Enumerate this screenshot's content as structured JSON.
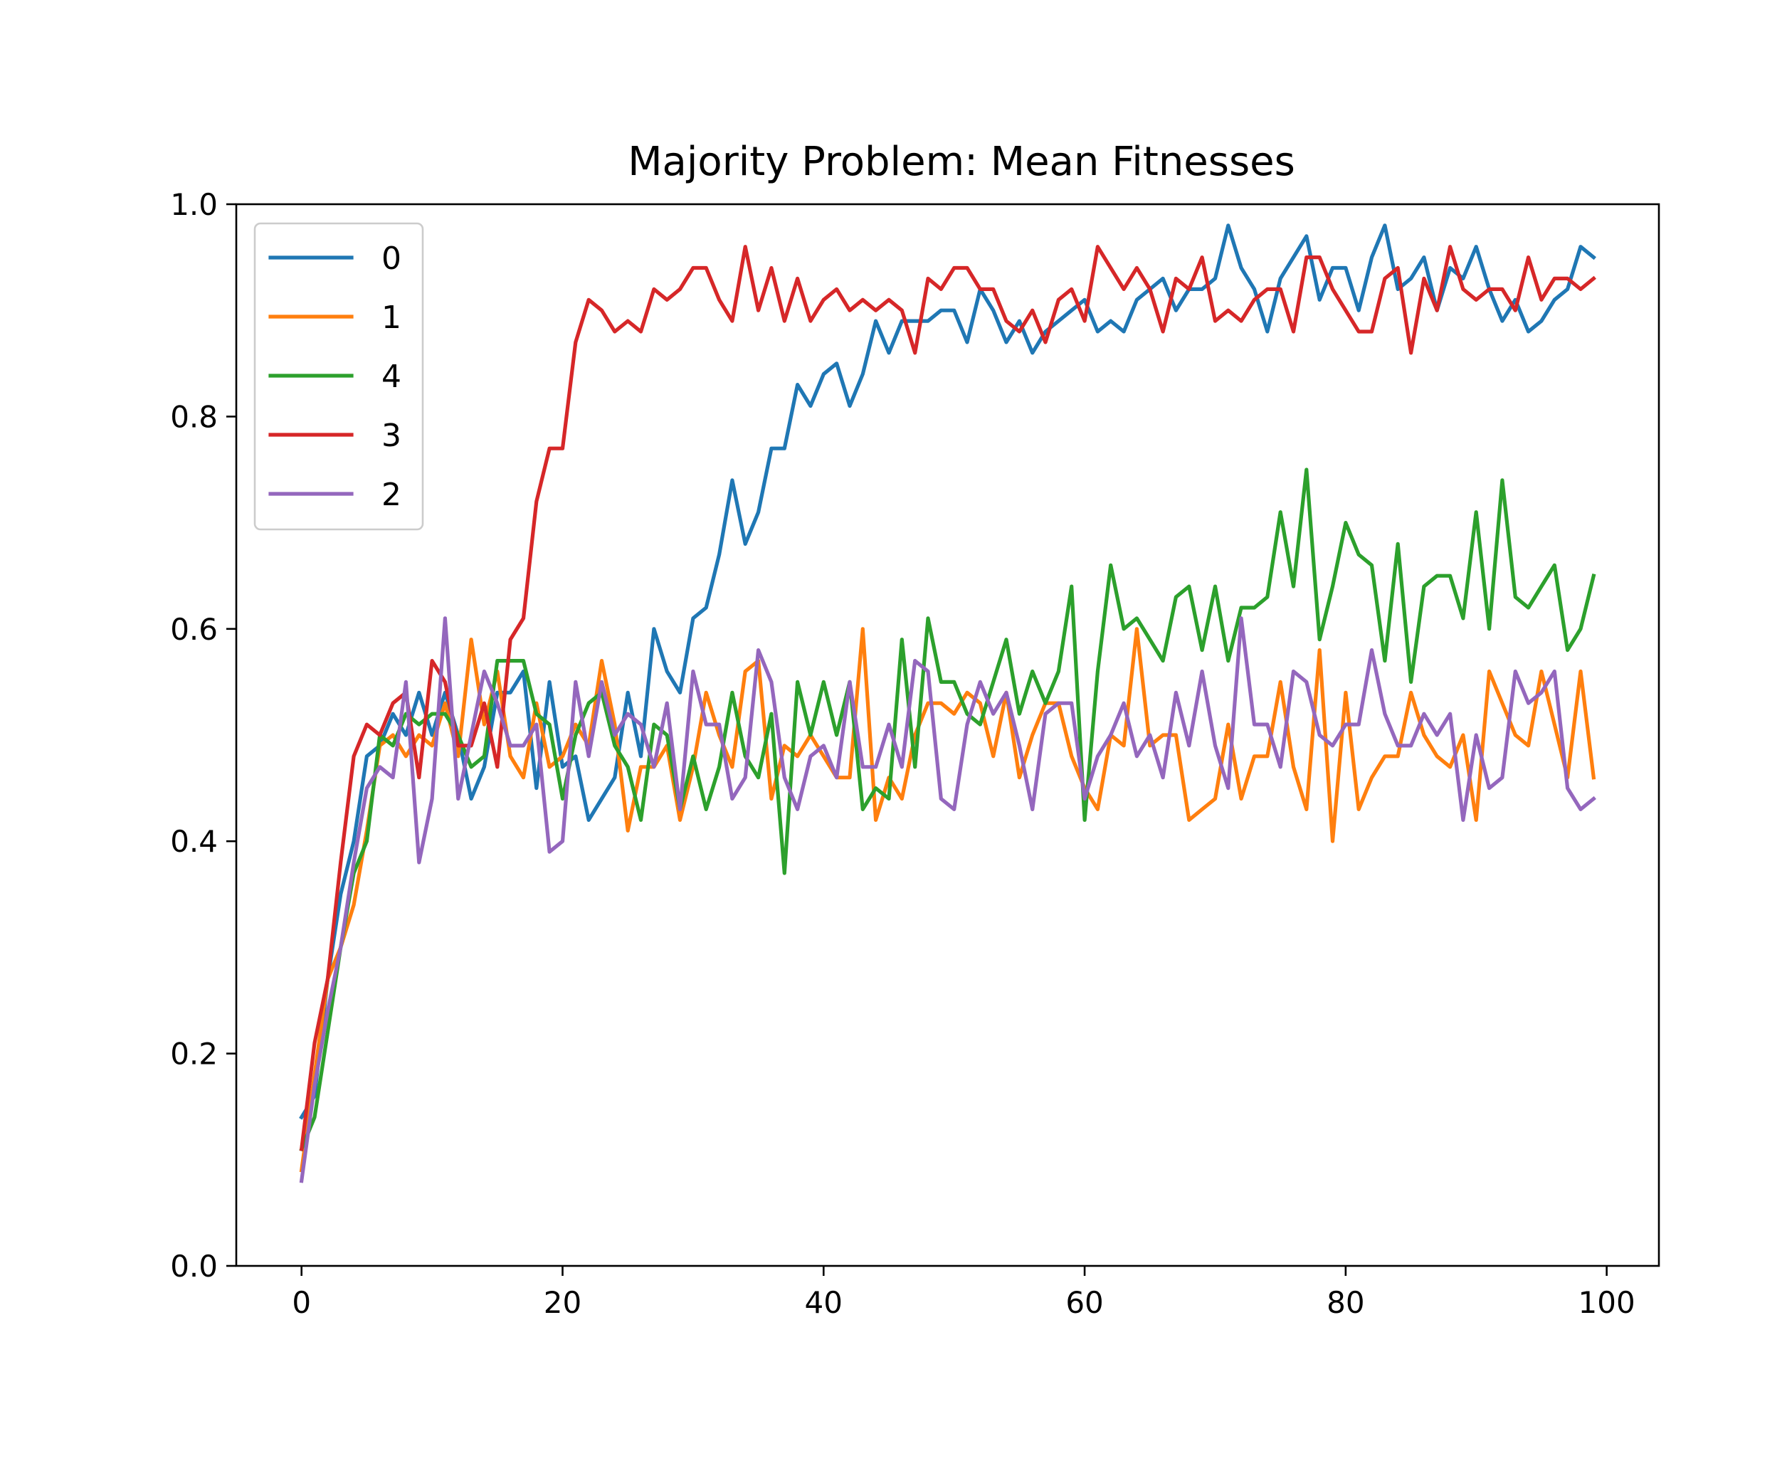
{
  "colors": {
    "background": "#ffffff",
    "axes": "#000000",
    "legend_frame": "#cccccc"
  },
  "chart_data": {
    "type": "line",
    "title": "Majority Problem: Mean Fitnesses",
    "xlabel": "",
    "ylabel": "",
    "xlim": [
      -5,
      104
    ],
    "ylim": [
      0.0,
      1.0
    ],
    "xticks": [
      0,
      20,
      40,
      60,
      80,
      100
    ],
    "yticks": [
      0.0,
      0.2,
      0.4,
      0.6,
      0.8,
      1.0
    ],
    "xtick_labels": [
      "0",
      "20",
      "40",
      "60",
      "80",
      "100"
    ],
    "ytick_labels": [
      "0.0",
      "0.2",
      "0.4",
      "0.6",
      "0.8",
      "1.0"
    ],
    "grid": false,
    "legend_position": "upper-left",
    "x": [
      0,
      1,
      2,
      3,
      4,
      5,
      6,
      7,
      8,
      9,
      10,
      11,
      12,
      13,
      14,
      15,
      16,
      17,
      18,
      19,
      20,
      21,
      22,
      23,
      24,
      25,
      26,
      27,
      28,
      29,
      30,
      31,
      32,
      33,
      34,
      35,
      36,
      37,
      38,
      39,
      40,
      41,
      42,
      43,
      44,
      45,
      46,
      47,
      48,
      49,
      50,
      51,
      52,
      53,
      54,
      55,
      56,
      57,
      58,
      59,
      60,
      61,
      62,
      63,
      64,
      65,
      66,
      67,
      68,
      69,
      70,
      71,
      72,
      73,
      74,
      75,
      76,
      77,
      78,
      79,
      80,
      81,
      82,
      83,
      84,
      85,
      86,
      87,
      88,
      89,
      90,
      91,
      92,
      93,
      94,
      95,
      96,
      97,
      98,
      99
    ],
    "series": [
      {
        "name": "0",
        "color": "#1f77b4",
        "values": [
          0.14,
          0.16,
          0.27,
          0.35,
          0.4,
          0.48,
          0.49,
          0.52,
          0.5,
          0.54,
          0.5,
          0.54,
          0.5,
          0.44,
          0.47,
          0.54,
          0.54,
          0.56,
          0.45,
          0.55,
          0.47,
          0.48,
          0.42,
          0.44,
          0.46,
          0.54,
          0.48,
          0.6,
          0.56,
          0.54,
          0.61,
          0.62,
          0.67,
          0.74,
          0.68,
          0.71,
          0.77,
          0.77,
          0.83,
          0.81,
          0.84,
          0.85,
          0.81,
          0.84,
          0.89,
          0.86,
          0.89,
          0.89,
          0.89,
          0.9,
          0.9,
          0.87,
          0.92,
          0.9,
          0.87,
          0.89,
          0.86,
          0.88,
          0.89,
          0.9,
          0.91,
          0.88,
          0.89,
          0.88,
          0.91,
          0.92,
          0.93,
          0.9,
          0.92,
          0.92,
          0.93,
          0.98,
          0.94,
          0.92,
          0.88,
          0.93,
          0.95,
          0.97,
          0.91,
          0.94,
          0.94,
          0.9,
          0.95,
          0.98,
          0.92,
          0.93,
          0.95,
          0.9,
          0.94,
          0.93,
          0.96,
          0.92,
          0.89,
          0.91,
          0.88,
          0.89,
          0.91,
          0.92,
          0.96,
          0.95
        ]
      },
      {
        "name": "1",
        "color": "#ff7f0e",
        "values": [
          0.09,
          0.18,
          0.27,
          0.3,
          0.34,
          0.41,
          0.49,
          0.5,
          0.48,
          0.5,
          0.49,
          0.53,
          0.48,
          0.59,
          0.51,
          0.56,
          0.48,
          0.46,
          0.53,
          0.47,
          0.48,
          0.51,
          0.49,
          0.57,
          0.51,
          0.41,
          0.47,
          0.47,
          0.49,
          0.42,
          0.47,
          0.54,
          0.5,
          0.47,
          0.56,
          0.57,
          0.44,
          0.49,
          0.48,
          0.5,
          0.48,
          0.46,
          0.46,
          0.6,
          0.42,
          0.46,
          0.44,
          0.5,
          0.53,
          0.53,
          0.52,
          0.54,
          0.53,
          0.48,
          0.54,
          0.46,
          0.5,
          0.53,
          0.53,
          0.48,
          0.45,
          0.43,
          0.5,
          0.49,
          0.6,
          0.49,
          0.5,
          0.5,
          0.42,
          0.43,
          0.44,
          0.51,
          0.44,
          0.48,
          0.48,
          0.55,
          0.47,
          0.43,
          0.58,
          0.4,
          0.54,
          0.43,
          0.46,
          0.48,
          0.48,
          0.54,
          0.5,
          0.48,
          0.47,
          0.5,
          0.42,
          0.56,
          0.53,
          0.5,
          0.49,
          0.56,
          0.51,
          0.46,
          0.56,
          0.46
        ]
      },
      {
        "name": "4",
        "color": "#2ca02c",
        "values": [
          0.11,
          0.14,
          0.22,
          0.3,
          0.37,
          0.4,
          0.5,
          0.49,
          0.52,
          0.51,
          0.52,
          0.52,
          0.5,
          0.47,
          0.48,
          0.57,
          0.57,
          0.57,
          0.52,
          0.51,
          0.44,
          0.5,
          0.53,
          0.54,
          0.49,
          0.47,
          0.42,
          0.51,
          0.5,
          0.43,
          0.48,
          0.43,
          0.47,
          0.54,
          0.48,
          0.46,
          0.52,
          0.37,
          0.55,
          0.5,
          0.55,
          0.5,
          0.55,
          0.43,
          0.45,
          0.44,
          0.59,
          0.47,
          0.61,
          0.55,
          0.55,
          0.52,
          0.51,
          0.55,
          0.59,
          0.52,
          0.56,
          0.53,
          0.56,
          0.64,
          0.42,
          0.56,
          0.66,
          0.6,
          0.61,
          0.59,
          0.57,
          0.63,
          0.64,
          0.58,
          0.64,
          0.57,
          0.62,
          0.62,
          0.63,
          0.71,
          0.64,
          0.75,
          0.59,
          0.64,
          0.7,
          0.67,
          0.66,
          0.57,
          0.68,
          0.55,
          0.64,
          0.65,
          0.65,
          0.61,
          0.71,
          0.6,
          0.74,
          0.63,
          0.62,
          0.64,
          0.66,
          0.58,
          0.6,
          0.65
        ]
      },
      {
        "name": "3",
        "color": "#d62728",
        "values": [
          0.11,
          0.21,
          0.27,
          0.38,
          0.48,
          0.51,
          0.5,
          0.53,
          0.54,
          0.46,
          0.57,
          0.55,
          0.49,
          0.49,
          0.53,
          0.47,
          0.59,
          0.61,
          0.72,
          0.77,
          0.77,
          0.87,
          0.91,
          0.9,
          0.88,
          0.89,
          0.88,
          0.92,
          0.91,
          0.92,
          0.94,
          0.94,
          0.91,
          0.89,
          0.96,
          0.9,
          0.94,
          0.89,
          0.93,
          0.89,
          0.91,
          0.92,
          0.9,
          0.91,
          0.9,
          0.91,
          0.9,
          0.86,
          0.93,
          0.92,
          0.94,
          0.94,
          0.92,
          0.92,
          0.89,
          0.88,
          0.9,
          0.87,
          0.91,
          0.92,
          0.89,
          0.96,
          0.94,
          0.92,
          0.94,
          0.92,
          0.88,
          0.93,
          0.92,
          0.95,
          0.89,
          0.9,
          0.89,
          0.91,
          0.92,
          0.92,
          0.88,
          0.95,
          0.95,
          0.92,
          0.9,
          0.88,
          0.88,
          0.93,
          0.94,
          0.86,
          0.93,
          0.9,
          0.96,
          0.92,
          0.91,
          0.92,
          0.92,
          0.9,
          0.95,
          0.91,
          0.93,
          0.93,
          0.92,
          0.93
        ]
      },
      {
        "name": "2",
        "color": "#9467bd",
        "values": [
          0.08,
          0.17,
          0.24,
          0.3,
          0.38,
          0.45,
          0.47,
          0.46,
          0.55,
          0.38,
          0.44,
          0.61,
          0.44,
          0.5,
          0.56,
          0.53,
          0.49,
          0.49,
          0.51,
          0.39,
          0.4,
          0.55,
          0.48,
          0.55,
          0.5,
          0.52,
          0.51,
          0.47,
          0.53,
          0.43,
          0.56,
          0.51,
          0.51,
          0.44,
          0.46,
          0.58,
          0.55,
          0.46,
          0.43,
          0.48,
          0.49,
          0.46,
          0.55,
          0.47,
          0.47,
          0.51,
          0.47,
          0.57,
          0.56,
          0.44,
          0.43,
          0.51,
          0.55,
          0.52,
          0.54,
          0.49,
          0.43,
          0.52,
          0.53,
          0.53,
          0.44,
          0.48,
          0.5,
          0.53,
          0.48,
          0.5,
          0.46,
          0.54,
          0.49,
          0.56,
          0.49,
          0.45,
          0.61,
          0.51,
          0.51,
          0.47,
          0.56,
          0.55,
          0.5,
          0.49,
          0.51,
          0.51,
          0.58,
          0.52,
          0.49,
          0.49,
          0.52,
          0.5,
          0.52,
          0.42,
          0.5,
          0.45,
          0.46,
          0.56,
          0.53,
          0.54,
          0.56,
          0.45,
          0.43,
          0.44
        ]
      }
    ]
  }
}
